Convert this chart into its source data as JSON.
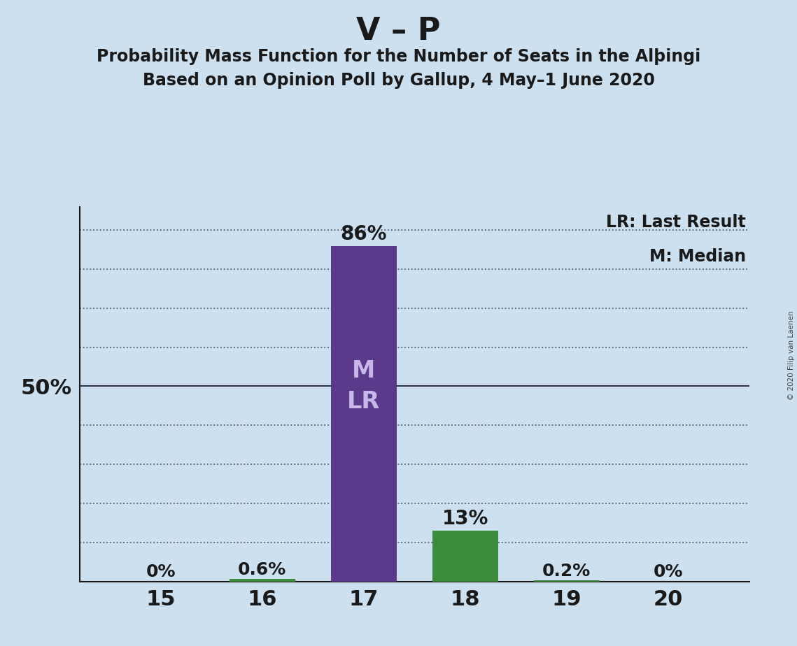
{
  "title_main": "V – P",
  "title_sub1": "Probability Mass Function for the Number of Seats in the Alþingi",
  "title_sub2": "Based on an Opinion Poll by Gallup, 4 May–1 June 2020",
  "copyright": "© 2020 Filip van Laenen",
  "seats": [
    15,
    16,
    17,
    18,
    19,
    20
  ],
  "probabilities": [
    0.0,
    0.006,
    0.86,
    0.13,
    0.002,
    0.0
  ],
  "bar_labels": [
    "0%",
    "0.6%",
    "86%",
    "13%",
    "0.2%",
    "0%"
  ],
  "bar_colors": [
    "#3d8c3d",
    "#3d8c3d",
    "#5b3a8c",
    "#3d8c3d",
    "#3d8c3d",
    "#3d8c3d"
  ],
  "median_bar": 17,
  "last_result_bar": 17,
  "background_color": "#cde0f0",
  "bar_width": 0.65,
  "ylim": [
    0,
    0.96
  ],
  "ytick_positions": [
    0.1,
    0.2,
    0.3,
    0.4,
    0.5,
    0.6,
    0.7,
    0.8,
    0.9
  ],
  "y50_label": "50%",
  "legend_lr": "LR: Last Result",
  "legend_m": "M: Median",
  "label_inside_color": "#c8b8e8",
  "label_outside_color": "#1a1a1a",
  "axis_color": "#1a1a1a",
  "grid_color": "#555577",
  "solid_line_color": "#333355",
  "title_main_fontsize": 32,
  "title_sub_fontsize": 17,
  "bar_label_fontsize": 20,
  "ytick_fontsize": 22,
  "xtick_fontsize": 22,
  "legend_fontsize": 17,
  "mlr_fontsize": 24
}
